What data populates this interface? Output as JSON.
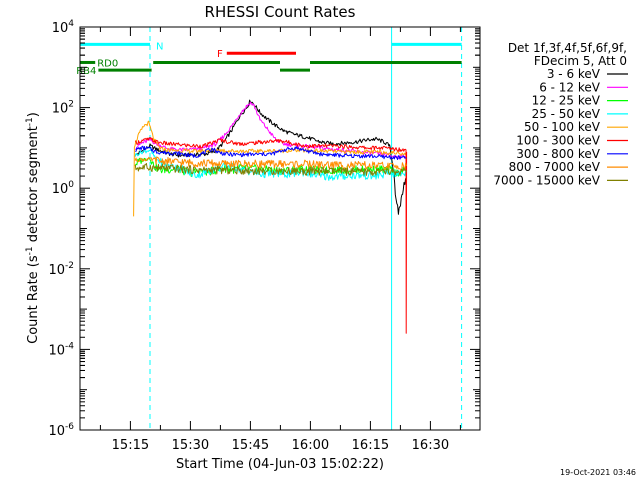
{
  "chart_data": {
    "type": "line",
    "title": "RHESSI Count Rates",
    "xlabel": "Start Time (04-Jun-03 15:02:22)",
    "ylabel_main": "Count Rate (s",
    "ylabel_sup": "-1",
    "ylabel_mid": " detector segment",
    "ylabel_sup2": "-1",
    "ylabel_end": ")",
    "xlim_min": [
      0,
      100
    ],
    "ylim_log10": [
      -6,
      4
    ],
    "yscale": "log",
    "x_ticks": [
      {
        "label": "15:15",
        "min": 12.6
      },
      {
        "label": "15:30",
        "min": 27.6
      },
      {
        "label": "15:45",
        "min": 42.6
      },
      {
        "label": "16:00",
        "min": 57.6
      },
      {
        "label": "16:15",
        "min": 72.6
      },
      {
        "label": "16:30",
        "min": 87.6
      }
    ],
    "y_ticks": [
      {
        "base": "10",
        "exp": "4",
        "log": 4
      },
      {
        "base": "10",
        "exp": "2",
        "log": 2
      },
      {
        "base": "10",
        "exp": "0",
        "log": 0
      },
      {
        "base": "10",
        "exp": "-2",
        "log": -2
      },
      {
        "base": "10",
        "exp": "-4",
        "log": -4
      },
      {
        "base": "10",
        "exp": "-6",
        "log": -6
      }
    ],
    "legend_header": [
      "Det 1f,3f,4f,5f,6f,9f,",
      "FDecim 5, Att 0"
    ],
    "legend_placement": "right",
    "timestamp": "19-Oct-2021 03:46",
    "night_intervals_min": [
      [
        0,
        17.5
      ],
      [
        77.9,
        95.4
      ]
    ],
    "night_label": "N",
    "night_color": "#00ffff",
    "flags": [
      {
        "label": "F",
        "color": "#ff0000",
        "log": 3.35,
        "segments": [
          [
            36.7,
            54.0
          ]
        ]
      },
      {
        "label": "RD0",
        "color": "#008000",
        "log": 3.12,
        "segments": [
          [
            0,
            3.8
          ],
          [
            18.3,
            50.0
          ],
          [
            57.5,
            95.4
          ]
        ]
      },
      {
        "label": "RB4",
        "color": "#008000",
        "log": 2.93,
        "segments": [
          [
            4.6,
            17.9
          ],
          [
            50.0,
            57.5
          ]
        ]
      }
    ],
    "series": [
      {
        "name": "3 - 6 keV",
        "color": "#000000",
        "points": [
          [
            13.8,
            0.82
          ],
          [
            15.5,
            0.92
          ],
          [
            17.5,
            1.05
          ],
          [
            19.5,
            0.95
          ],
          [
            22,
            0.86
          ],
          [
            25,
            0.81
          ],
          [
            28,
            0.83
          ],
          [
            31,
            0.84
          ],
          [
            34,
            0.92
          ],
          [
            36,
            1.15
          ],
          [
            38,
            1.45
          ],
          [
            40,
            1.8
          ],
          [
            41.8,
            2.02
          ],
          [
            42.6,
            2.18
          ],
          [
            43.5,
            2.08
          ],
          [
            45,
            1.88
          ],
          [
            47,
            1.7
          ],
          [
            49,
            1.55
          ],
          [
            51,
            1.42
          ],
          [
            53,
            1.35
          ],
          [
            55,
            1.3
          ],
          [
            57,
            1.25
          ],
          [
            60,
            1.15
          ],
          [
            63,
            1.1
          ],
          [
            66,
            1.12
          ],
          [
            69,
            1.15
          ],
          [
            72,
            1.2
          ],
          [
            74,
            1.22
          ],
          [
            76,
            1.15
          ],
          [
            77.4,
            1.05
          ],
          [
            77.9,
            0.75
          ],
          [
            78.5,
            0.38
          ],
          [
            79,
            -0.35
          ],
          [
            79.6,
            -0.6
          ],
          [
            80.3,
            -0.3
          ],
          [
            81,
            0.15
          ],
          [
            81.6,
            0.22
          ]
        ]
      },
      {
        "name": "6 - 12 keV",
        "color": "#ff00ff",
        "points": [
          [
            13.8,
            1.0
          ],
          [
            15.5,
            1.12
          ],
          [
            17.5,
            1.2
          ],
          [
            19.5,
            1.08
          ],
          [
            22,
            0.98
          ],
          [
            25,
            0.95
          ],
          [
            28,
            0.96
          ],
          [
            31,
            1.0
          ],
          [
            34,
            1.1
          ],
          [
            36,
            1.3
          ],
          [
            38,
            1.55
          ],
          [
            40,
            1.85
          ],
          [
            41.8,
            2.05
          ],
          [
            42.6,
            2.12
          ],
          [
            43.5,
            2.05
          ],
          [
            45,
            1.7
          ],
          [
            47,
            1.45
          ],
          [
            48,
            1.32
          ],
          [
            49,
            1.2
          ],
          [
            51,
            1.1
          ],
          [
            55,
            1.05
          ],
          [
            60,
            1.0
          ],
          [
            65,
            0.95
          ],
          [
            70,
            0.9
          ],
          [
            75,
            0.85
          ],
          [
            77.9,
            0.8
          ],
          [
            79,
            0.78
          ],
          [
            81.6,
            0.8
          ]
        ]
      },
      {
        "name": "12 - 25 keV",
        "color": "#00ff00",
        "points": [
          [
            13.8,
            0.6
          ],
          [
            15.5,
            0.7
          ],
          [
            17.5,
            0.75
          ],
          [
            18.5,
            0.55
          ],
          [
            20,
            0.45
          ],
          [
            22,
            0.46
          ],
          [
            24,
            0.5
          ],
          [
            26,
            0.42
          ],
          [
            28,
            0.38
          ],
          [
            30,
            0.44
          ],
          [
            32,
            0.4
          ],
          [
            34,
            0.45
          ],
          [
            36,
            0.5
          ],
          [
            38,
            0.45
          ],
          [
            40,
            0.5
          ],
          [
            44,
            0.48
          ],
          [
            48,
            0.45
          ],
          [
            52,
            0.44
          ],
          [
            56,
            0.47
          ],
          [
            60,
            0.44
          ],
          [
            65,
            0.45
          ],
          [
            70,
            0.46
          ],
          [
            75,
            0.47
          ],
          [
            77.9,
            0.45
          ],
          [
            79,
            0.38
          ],
          [
            81.6,
            0.45
          ]
        ]
      },
      {
        "name": "25 - 50 keV",
        "color": "#00ffff",
        "points": [
          [
            13.8,
            0.82
          ],
          [
            15.5,
            0.9
          ],
          [
            17.5,
            0.95
          ],
          [
            19,
            0.72
          ],
          [
            21,
            0.6
          ],
          [
            23,
            0.55
          ],
          [
            25,
            0.5
          ],
          [
            27,
            0.4
          ],
          [
            29,
            0.32
          ],
          [
            31,
            0.38
          ],
          [
            33,
            0.45
          ],
          [
            35,
            0.5
          ],
          [
            37,
            0.55
          ],
          [
            39,
            0.5
          ],
          [
            41,
            0.45
          ],
          [
            43,
            0.4
          ],
          [
            45,
            0.35
          ],
          [
            48,
            0.36
          ],
          [
            52,
            0.35
          ],
          [
            56,
            0.4
          ],
          [
            60,
            0.3
          ],
          [
            63,
            0.28
          ],
          [
            66,
            0.3
          ],
          [
            70,
            0.32
          ],
          [
            74,
            0.3
          ],
          [
            77.9,
            0.38
          ],
          [
            79,
            0.35
          ],
          [
            81.6,
            0.38
          ]
        ]
      },
      {
        "name": "50 - 100 keV",
        "color": "#ffa500",
        "points": [
          [
            13.4,
            -0.7
          ],
          [
            13.6,
            1.05
          ],
          [
            14.5,
            1.3
          ],
          [
            16,
            1.55
          ],
          [
            17.2,
            1.62
          ],
          [
            18.5,
            1.2
          ],
          [
            20,
            0.98
          ],
          [
            22,
            0.95
          ],
          [
            25,
            0.93
          ],
          [
            28,
            0.92
          ],
          [
            31,
            0.93
          ],
          [
            34,
            0.95
          ],
          [
            37,
            0.93
          ],
          [
            40,
            0.92
          ],
          [
            43,
            0.92
          ],
          [
            46,
            0.92
          ],
          [
            50,
            0.93
          ],
          [
            54,
            0.94
          ],
          [
            58,
            0.93
          ],
          [
            62,
            0.92
          ],
          [
            66,
            0.9
          ],
          [
            70,
            0.9
          ],
          [
            74,
            0.9
          ],
          [
            77.9,
            0.88
          ],
          [
            81.6,
            0.86
          ]
        ]
      },
      {
        "name": "100 - 300 keV",
        "color": "#ff0000",
        "points": [
          [
            13.8,
            1.12
          ],
          [
            15.5,
            1.18
          ],
          [
            17.5,
            1.22
          ],
          [
            19,
            1.15
          ],
          [
            22,
            1.1
          ],
          [
            25,
            1.08
          ],
          [
            28,
            1.05
          ],
          [
            31,
            1.05
          ],
          [
            33,
            1.12
          ],
          [
            35,
            1.2
          ],
          [
            37,
            1.15
          ],
          [
            40,
            1.1
          ],
          [
            43,
            1.12
          ],
          [
            46,
            1.15
          ],
          [
            50,
            1.18
          ],
          [
            53,
            1.12
          ],
          [
            56,
            1.05
          ],
          [
            60,
            1.05
          ],
          [
            64,
            1.05
          ],
          [
            68,
            1.02
          ],
          [
            72,
            1.0
          ],
          [
            76,
            1.0
          ],
          [
            78,
            0.98
          ],
          [
            80,
            0.96
          ],
          [
            81.5,
            0.95
          ],
          [
            81.55,
            -3.6
          ],
          [
            81.65,
            0.9
          ]
        ]
      },
      {
        "name": "300 - 800 keV",
        "color": "#0000ff",
        "points": [
          [
            13.8,
            0.95
          ],
          [
            15.5,
            1.0
          ],
          [
            17.5,
            0.98
          ],
          [
            19,
            0.9
          ],
          [
            22,
            0.88
          ],
          [
            25,
            0.86
          ],
          [
            27,
            0.82
          ],
          [
            29,
            0.8
          ],
          [
            31,
            0.88
          ],
          [
            33,
            0.98
          ],
          [
            35,
            0.88
          ],
          [
            37,
            0.84
          ],
          [
            40,
            0.83
          ],
          [
            44,
            0.84
          ],
          [
            48,
            0.85
          ],
          [
            51,
            0.95
          ],
          [
            54,
            1.0
          ],
          [
            57,
            0.92
          ],
          [
            60,
            0.85
          ],
          [
            64,
            0.82
          ],
          [
            68,
            0.8
          ],
          [
            72,
            0.8
          ],
          [
            76,
            0.78
          ],
          [
            79,
            0.76
          ],
          [
            81.6,
            0.75
          ]
        ]
      },
      {
        "name": "800 - 7000 keV",
        "color": "#ff8c00",
        "points": [
          [
            13.8,
            0.7
          ],
          [
            17,
            0.72
          ],
          [
            20,
            0.68
          ],
          [
            24,
            0.65
          ],
          [
            28,
            0.63
          ],
          [
            32,
            0.62
          ],
          [
            36,
            0.6
          ],
          [
            40,
            0.6
          ],
          [
            44,
            0.6
          ],
          [
            48,
            0.6
          ],
          [
            52,
            0.6
          ],
          [
            56,
            0.6
          ],
          [
            60,
            0.58
          ],
          [
            64,
            0.58
          ],
          [
            68,
            0.57
          ],
          [
            72,
            0.56
          ],
          [
            76,
            0.55
          ],
          [
            79,
            0.54
          ],
          [
            81.6,
            0.55
          ]
        ]
      },
      {
        "name": "7000 - 15000 keV",
        "color": "#808000",
        "points": [
          [
            13.8,
            0.5
          ],
          [
            17,
            0.52
          ],
          [
            20,
            0.5
          ],
          [
            24,
            0.48
          ],
          [
            28,
            0.46
          ],
          [
            32,
            0.45
          ],
          [
            36,
            0.45
          ],
          [
            40,
            0.44
          ],
          [
            44,
            0.43
          ],
          [
            48,
            0.43
          ],
          [
            52,
            0.43
          ],
          [
            56,
            0.42
          ],
          [
            60,
            0.42
          ],
          [
            64,
            0.42
          ],
          [
            68,
            0.41
          ],
          [
            72,
            0.4
          ],
          [
            76,
            0.4
          ],
          [
            79,
            0.4
          ],
          [
            81.6,
            0.4
          ]
        ]
      }
    ]
  }
}
